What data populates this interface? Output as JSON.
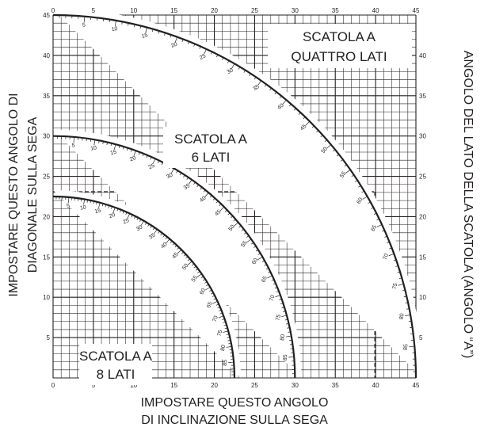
{
  "chart_data": {
    "type": "diagram",
    "x_axis": {
      "title_lines": [
        "IMPOSTARE QUESTO ANGOLO",
        "DI INCLINAZIONE SULLA SEGA"
      ],
      "range": [
        0,
        45
      ],
      "ticks": [
        0,
        5,
        10,
        15,
        20,
        25,
        30,
        35,
        40,
        45
      ],
      "labels_on": [
        "top",
        "bottom"
      ]
    },
    "y_axis_left": {
      "title_lines": [
        "IMPOSTARE QUESTO ANGOLO DI",
        "DIAGONALE SULLA SEGA"
      ],
      "range": [
        0,
        45
      ],
      "ticks": [
        5,
        10,
        15,
        20,
        25,
        30,
        35,
        40,
        45
      ]
    },
    "y_axis_right": {
      "title": "ANGOLO DEL LATO DELLA SCATOLA (ANGOLO “A”)",
      "ticks": [
        5,
        10,
        15,
        20,
        25,
        30,
        35,
        40
      ]
    },
    "grid": true,
    "arcs": [
      {
        "label_lines": [
          "SCATOLA A",
          "QUATTRO LATI"
        ],
        "radius": 45,
        "scale_labels": [
          85,
          80,
          75,
          70,
          65,
          60,
          55,
          50,
          45,
          40,
          35,
          30,
          25,
          20,
          15,
          10,
          5
        ]
      },
      {
        "label_lines": [
          "SCATOLA A",
          "6 LATI"
        ],
        "radius": 30,
        "scale_labels": [
          85,
          80,
          75,
          70,
          65,
          60,
          55,
          50,
          45,
          40,
          35,
          30,
          25,
          20,
          15,
          10,
          5
        ]
      },
      {
        "label_lines": [
          "SCATOLA A",
          "8 LATI"
        ],
        "radius": 22.5,
        "scale_labels": [
          85,
          80,
          75,
          70,
          65,
          60,
          55,
          50,
          45,
          40,
          35,
          30,
          25,
          20,
          15,
          10,
          5
        ]
      }
    ],
    "example_reading": {
      "x": 39.9,
      "y": 23.1,
      "angle_a": 25
    }
  }
}
